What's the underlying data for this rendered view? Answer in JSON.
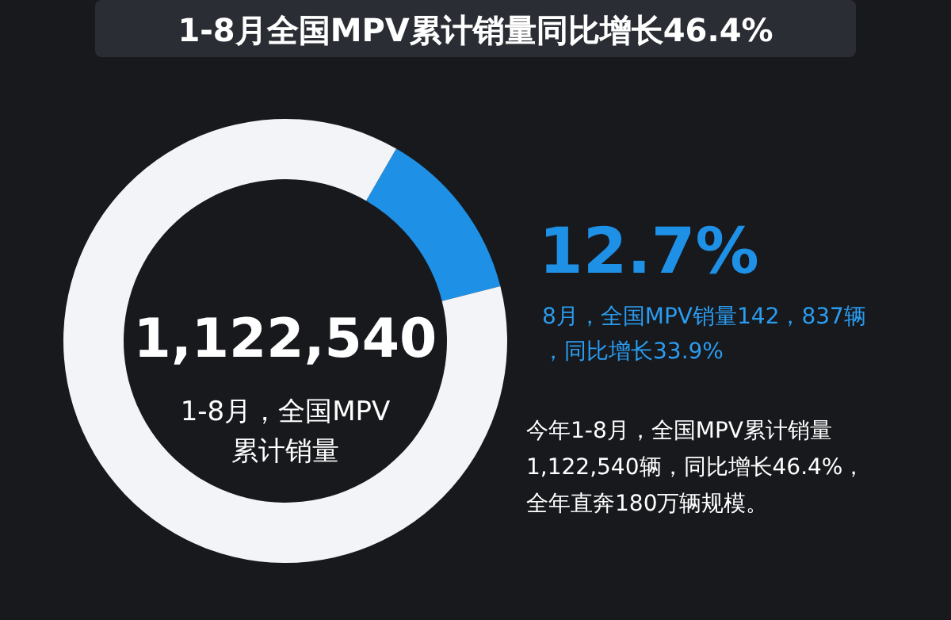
{
  "chart_data": {
    "type": "donut",
    "title": "1-8月全国MPV累计销量同比增长46.4%",
    "categories": [
      null,
      null
    ],
    "values": [
      12.7,
      87.3
    ],
    "colors": [
      "#1e90e6",
      "#f2f4f7"
    ],
    "value_labels": [
      "12.7%",
      null
    ],
    "annotations": [
      "1,122,540",
      "1-8月，全国MPV累计销量",
      "8月，全国MPV销量142，837辆，同比增长33.9%",
      "今年1-8月，全国MPV累计销量1,122,540辆，同比增长46.4%，全年直奔180万辆规模。"
    ]
  }
}
